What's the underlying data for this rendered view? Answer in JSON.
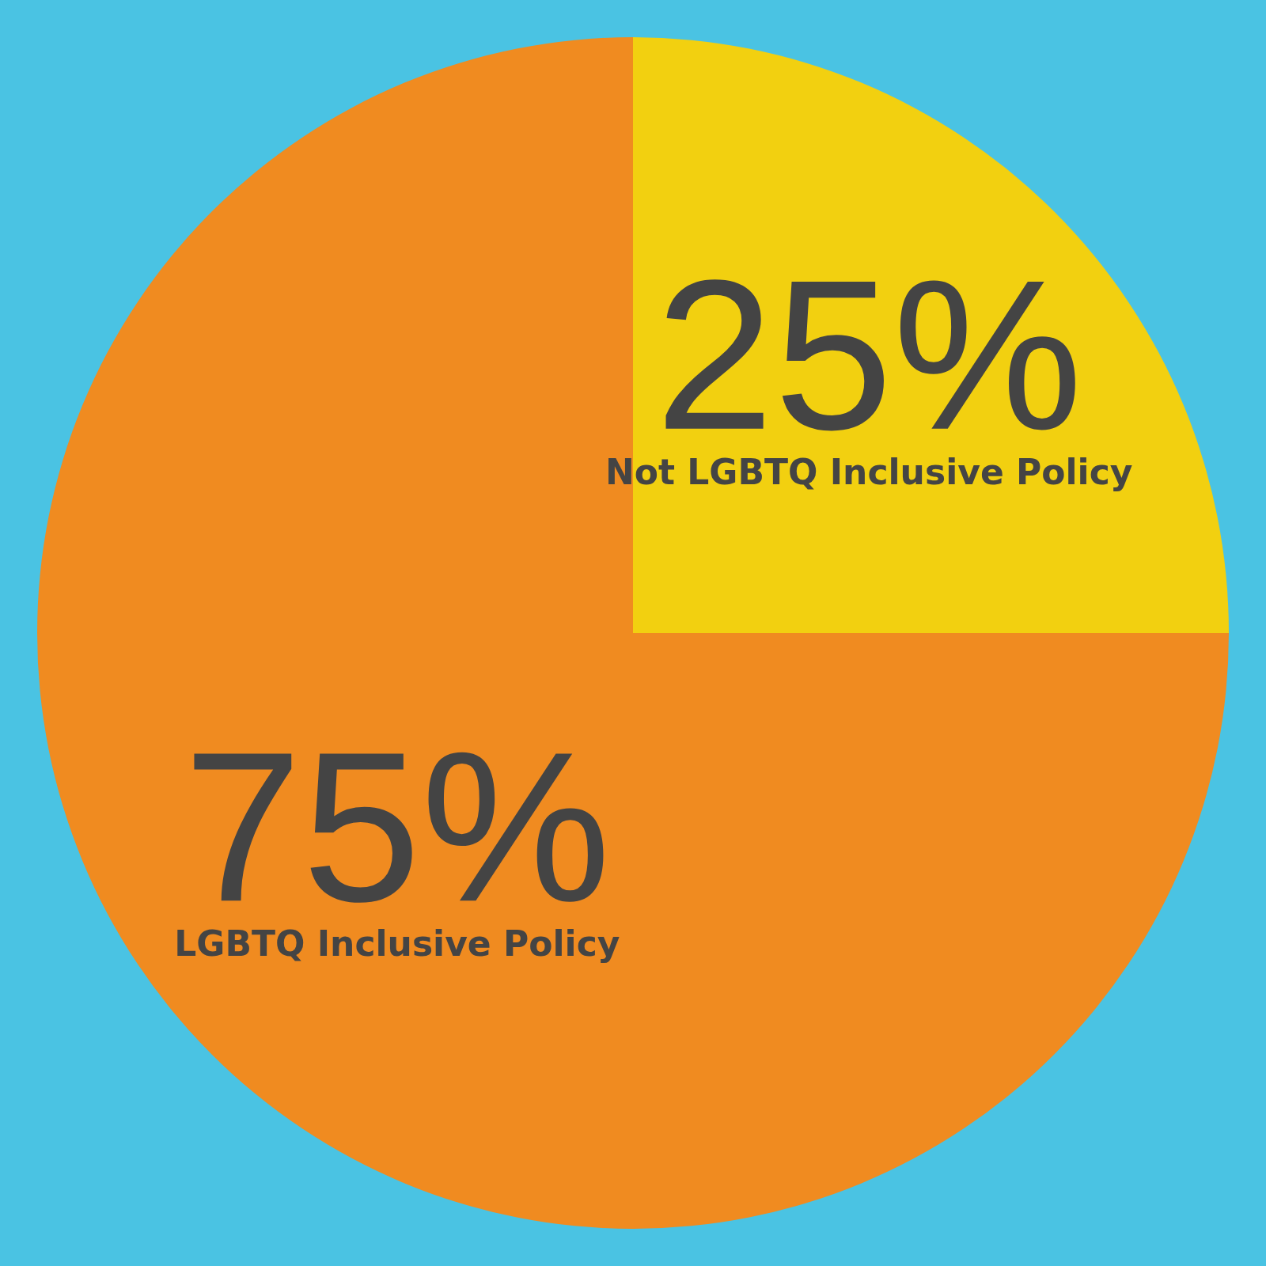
{
  "chart_data": {
    "type": "pie",
    "categories": [
      "Not LGBTQ Inclusive Policy",
      "LGBTQ Inclusive Policy"
    ],
    "values": [
      25,
      75
    ],
    "value_labels": [
      "25%",
      "75%"
    ],
    "colors": [
      "#f2d010",
      "#f08b20"
    ]
  }
}
